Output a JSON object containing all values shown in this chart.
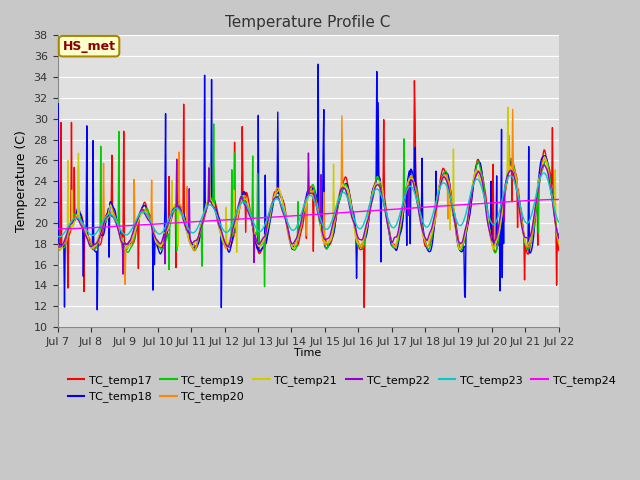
{
  "title": "Temperature Profile C",
  "xlabel": "Time",
  "ylabel": "Temperature (C)",
  "ylim": [
    10,
    38
  ],
  "yticks": [
    10,
    12,
    14,
    16,
    18,
    20,
    22,
    24,
    26,
    28,
    30,
    32,
    34,
    36,
    38
  ],
  "annotation_text": "HS_met",
  "annotation_color": "#8b0000",
  "annotation_bg": "#ffffcc",
  "legend_entries": [
    "TC_temp17",
    "TC_temp18",
    "TC_temp19",
    "TC_temp20",
    "TC_temp21",
    "TC_temp22",
    "TC_temp23",
    "TC_temp24"
  ],
  "line_colors": [
    "#ff0000",
    "#0000ff",
    "#00cc00",
    "#ff8800",
    "#cccc00",
    "#9900cc",
    "#00cccc",
    "#ff00ff"
  ],
  "xtick_labels": [
    "Jul 7",
    "Jul 8",
    "Jul 9",
    "Jul 10",
    "Jul 11",
    "Jul 12",
    "Jul 13",
    "Jul 14",
    "Jul 15",
    "Jul 16",
    "Jul 17",
    "Jul 18",
    "Jul 19",
    "Jul 20",
    "Jul 21",
    "Jul 22"
  ],
  "n_points": 720,
  "fig_width": 6.4,
  "fig_height": 4.8,
  "dpi": 100
}
